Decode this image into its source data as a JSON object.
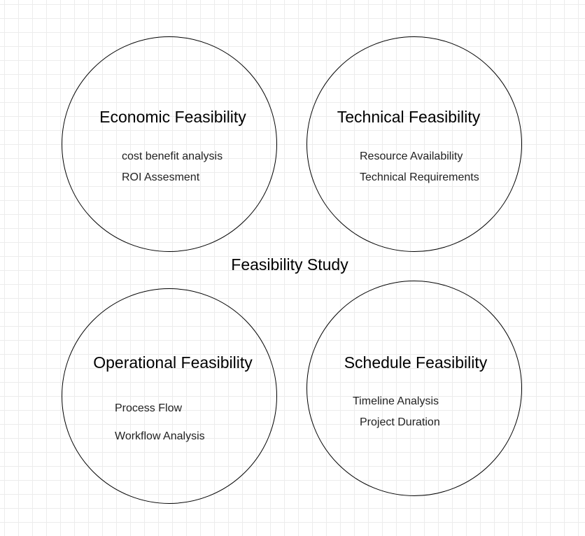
{
  "title": "Feasibility Study",
  "circles": {
    "economic": {
      "title": "Economic Feasibility",
      "items": [
        "cost benefit analysis",
        "ROI Assesment"
      ]
    },
    "technical": {
      "title": "Technical Feasibility",
      "items": [
        "Resource Availability",
        "Technical Requirements"
      ]
    },
    "operational": {
      "title": "Operational Feasibility",
      "items": [
        "Process Flow",
        "Workflow Analysis"
      ]
    },
    "schedule": {
      "title": "Schedule Feasibility",
      "items": [
        "Timeline Analysis",
        "Project Duration"
      ]
    }
  },
  "colors": {
    "stroke": "#000000",
    "text": "#000000",
    "grid": "#ececec",
    "background": "#ffffff"
  }
}
